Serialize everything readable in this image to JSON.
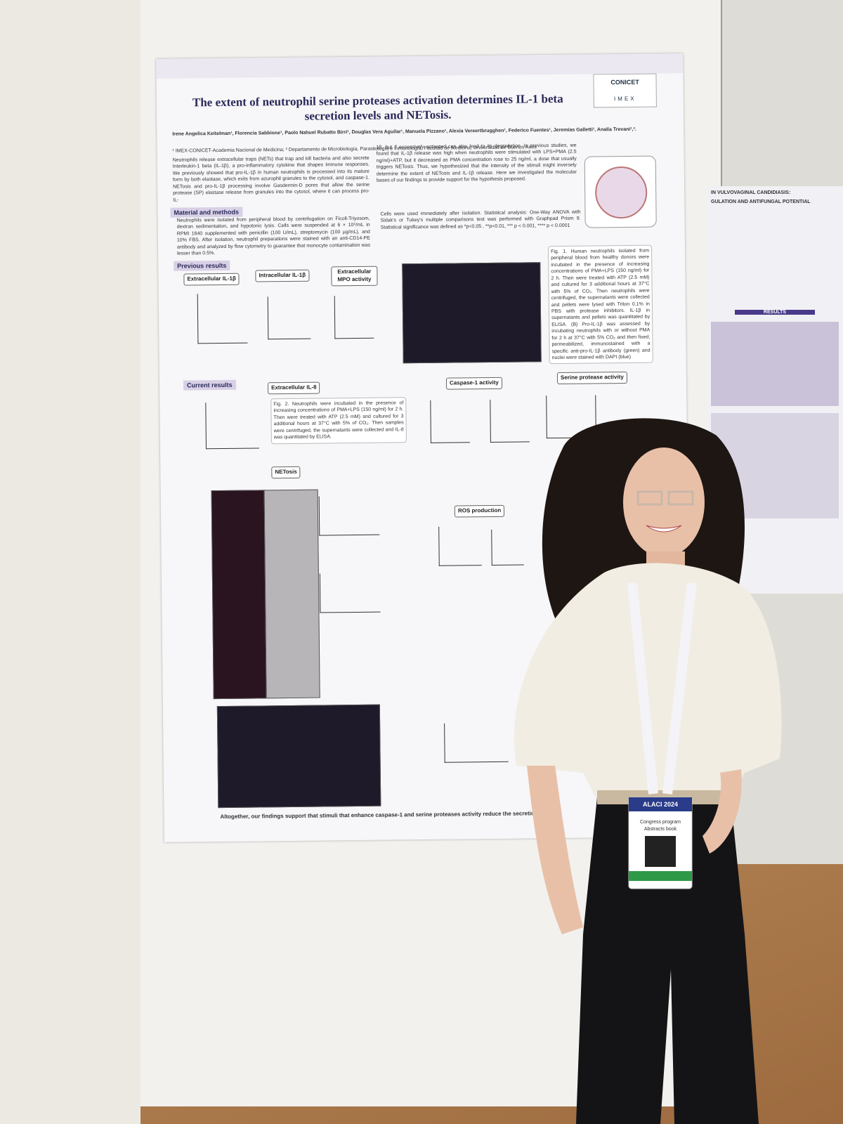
{
  "poster": {
    "title": "The extent of neutrophil serine proteases activation determines IL-1 beta secretion levels and NETosis.",
    "logo": "CONICET",
    "logo_sub": "IMEX",
    "authors": "Irene Angelica Keitelman¹, Florencia Sabbione¹, Paolo Nahuel Rubatto Birri¹, Douglas Vera Aguilar¹, Manuela Pizzano¹, Alexia Vereertbrugghen¹, Federico Fuentes¹, Jeremías Galletti¹, Analía Trevani¹,².",
    "affiliations": "¹ IMEX-CONICET-Academia Nacional de Medicina; ² Departamento de Microbiología, Parasitología e Inmunología, Facultad de Medicina, Universidad de Buenos Aires",
    "intro": [
      "Neutrophils release extracellular traps (NETs) that trap and kill bacteria and also secrete Interleukin-1 beta (IL-1β), a pro-inflammatory cytokine that shapes immune responses. We previously showed that pro-IL-1β in human neutrophils is processed into its mature form by both elastase, which exits from azurophil granules to the cytosol, and caspase-1. NETosis and pro-IL-1β processing involve Gasdermin-D pores that allow the serine protease (SP) elastase release from granules into the cytosol, where it can process pro-IL-",
      "1β, but if excessively activated can also lead to its degradation. In previous studies, we found that IL-1β release was high when neutrophils were stimulated with LPS+PMA (2.5 ng/ml)+ATP, but it decreased as PMA concentration rose to 25 ng/ml, a dose that usually triggers NETosis. Thus, we hypothesized that the intensity of the stimuli might inversely determine the extent of NETosis and IL-1β release. Here we investigated the molecular bases of our findings to provide support for the hypothesis proposed."
    ],
    "sections": [
      "Material and methods",
      "Previous results",
      "Current results"
    ],
    "methods": [
      "Neutrophils were isolated from peripheral blood by centrifugation on Ficoll-Triyosom, dextran sedimentation, and hypotonic lysis. Cells were suspended at 6 × 10⁶/mL in RPMI 1640 supplemented with penicillin (100 U/mL), streptomycin (100 μg/mL), and 10% FBS. After isolation, neutrophil preparations were stained with an anti-CD14-PE antibody and analyzed by flow cytometry to guarantee that monocyte contamination was lesser than 0.5%.",
      "Cells were used immediately after isolation. Statistical analysis: One-Way ANOVA with Sidak's or Tukey's multiple comparisons test was performed with Graphpad Prism 9. Statistical significance was defined as *p<0.05 , **p<0.01, *** p < 0.001, **** p < 0.0001"
    ],
    "panels": [
      "Extracellular IL-1β",
      "Intracellular IL-1β",
      "Extracellular MPO activity",
      "Extracellular IL-8",
      "Caspase-1 activity",
      "Serine protease activity",
      "NETosis",
      "ROS production"
    ],
    "fig1": "Fig. 1. Human neutrophils isolated from peripheral blood from healthy donors were incubated in the presence of increasing concentrations of PMA+LPS (150 ng/ml) for 2 h. Then were treated with ATP (2.5 mM) and cultured for 3 additional hours at 37°C with 5% of CO₂. Then neutrophils were centrifuged, the supernatants were collected and pellets were lysed with Triton 0.1% in PBS with protease inhibitors. IL-1β in supernatants and pellets was quantitated by ELISA. (B) Pro-IL-1β was assessed by incubating neutrophils with or without PMA for 2 h at 37°C with 5% CO₂ and then fixed, permeabilized, immunostained with a specific anti-pro-IL-1β antibody (green) and nuclei were stained with DAPI (blue)",
    "fig2": "Fig. 2. Neutrophils were incubated in the presence of increasing concentrations of PMA+LPS (150 ng/ml) for 2 h. Then were treated with ATP (2.5 mM) and cultured for 3 additional hours at 37°C with 5% of CO₂. Then samples were centrifuged, the supernatants were collected and IL-8 was quantitated by ELISA.",
    "conclusion": "Altogether, our findings support that stimuli that enhance caspase-1 and serine proteases activity reduce the secretion of"
  },
  "neighbor_poster": {
    "title": "IN VULVOVAGINAL CANDIDIASIS:",
    "subtitle": "GULATION AND ANTIFUNGAL POTENTIAL",
    "section": "RESULTS"
  },
  "badge": {
    "event": "ALACI 2024",
    "line1": "Congress program",
    "line2": "Abstracts book"
  }
}
